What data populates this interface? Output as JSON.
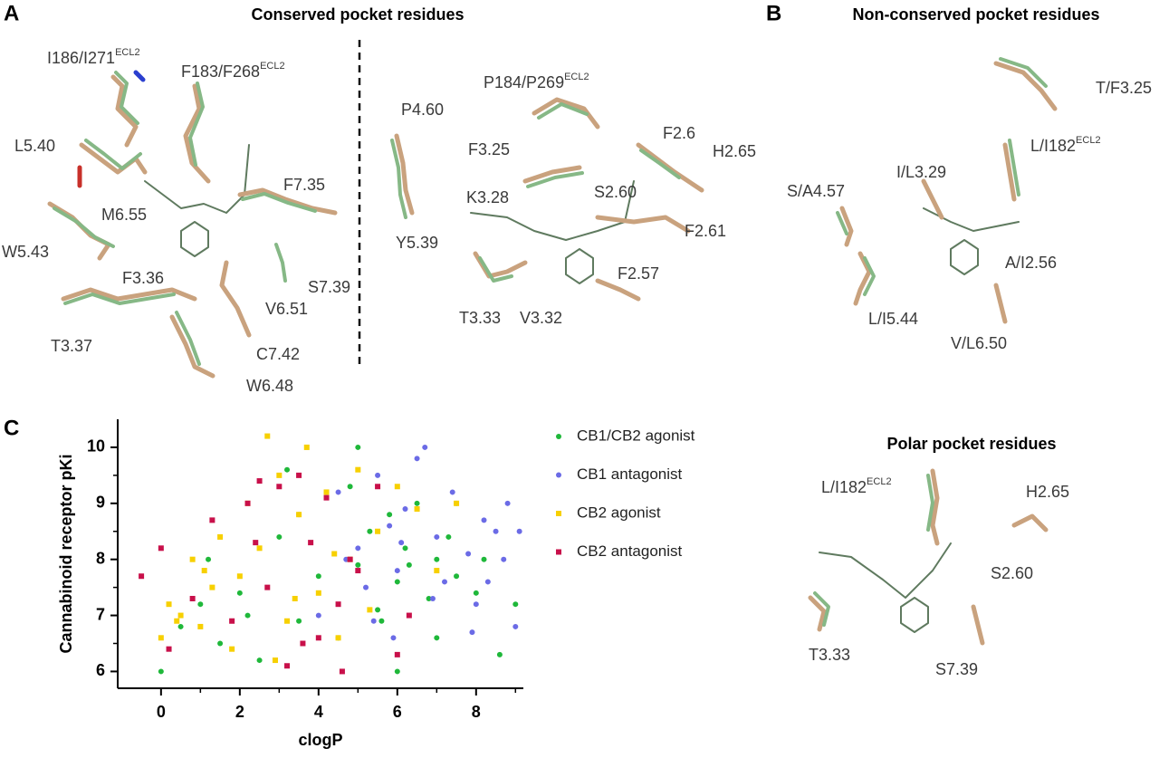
{
  "panels": [
    {
      "letter": "A",
      "title": "Conserved pocket residues"
    },
    {
      "letter": "B",
      "title": "Non-conserved pocket residues"
    },
    {
      "letter": "C"
    }
  ],
  "polar_title": "Polar pocket residues",
  "residues": {
    "a_left": [
      {
        "text": "I186/I271",
        "sup": "ECL2"
      },
      {
        "text": "F183/F268",
        "sup": "ECL2"
      },
      {
        "text": "L5.40"
      },
      {
        "text": "F7.35"
      },
      {
        "text": "M6.55"
      },
      {
        "text": "W5.43"
      },
      {
        "text": "F3.36"
      },
      {
        "text": "S7.39"
      },
      {
        "text": "V6.51"
      },
      {
        "text": "T3.37"
      },
      {
        "text": "C7.42"
      },
      {
        "text": "W6.48"
      }
    ],
    "a_right": [
      {
        "text": "P4.60"
      },
      {
        "text": "P184/P269",
        "sup": "ECL2"
      },
      {
        "text": "F3.25"
      },
      {
        "text": "F2.6"
      },
      {
        "text": "H2.65"
      },
      {
        "text": "K3.28"
      },
      {
        "text": "S2.60"
      },
      {
        "text": "F2.61"
      },
      {
        "text": "Y5.39"
      },
      {
        "text": "F2.57"
      },
      {
        "text": "T3.33"
      },
      {
        "text": "V3.32"
      }
    ],
    "b_top": [
      {
        "text": "T/F3.25"
      },
      {
        "text": "L/I182",
        "sup": "ECL2"
      },
      {
        "text": "I/L3.29"
      },
      {
        "text": "S/A4.57"
      },
      {
        "text": "A/I2.56"
      },
      {
        "text": "L/I5.44"
      },
      {
        "text": "V/L6.50"
      }
    ],
    "b_polar": [
      {
        "text": "L/I182",
        "sup": "ECL2"
      },
      {
        "text": "H2.65"
      },
      {
        "text": "S2.60"
      },
      {
        "text": "T3.33"
      },
      {
        "text": "S7.39"
      }
    ]
  },
  "chart_data": {
    "type": "scatter",
    "x_label": "clogP",
    "y_label": "Cannabinoid receptor pKi",
    "xlim": [
      -1.1,
      9.2
    ],
    "ylim": [
      5.7,
      10.5
    ],
    "xticks": [
      0,
      2,
      4,
      6,
      8
    ],
    "xminorticks": [
      1,
      3,
      5,
      7,
      9
    ],
    "yticks": [
      6,
      7,
      8,
      9,
      10
    ],
    "yminorticks": [
      6.5,
      7.5,
      8.5,
      9.5
    ],
    "series": [
      {
        "name": "CB1/CB2 agonist",
        "color": "#1fb83a",
        "marker": "circle",
        "x": [
          0,
          0.5,
          1,
          1.5,
          2,
          2.5,
          3,
          3.5,
          4,
          4.2,
          4.5,
          5,
          5,
          5.3,
          5.5,
          5.8,
          6,
          6,
          6.2,
          6.5,
          6.8,
          7,
          7,
          7.3,
          7.5,
          8,
          8.2,
          8.6,
          9,
          3.2,
          2.2,
          4.8,
          6.3,
          5.6,
          1.2
        ],
        "values": [
          6,
          6.8,
          7.2,
          6.5,
          7.4,
          6.2,
          8.4,
          6.9,
          7.7,
          9.2,
          6.6,
          10,
          7.9,
          8.5,
          7.1,
          8.8,
          6.0,
          7.6,
          8.2,
          9.0,
          7.3,
          8.0,
          6.6,
          8.4,
          7.7,
          7.4,
          8.0,
          6.3,
          7.2,
          9.6,
          7.0,
          9.3,
          7.9,
          6.9,
          8.0
        ]
      },
      {
        "name": "CB1 antagonist",
        "color": "#6b6be6",
        "marker": "circle",
        "x": [
          3.5,
          4,
          4.5,
          5,
          5.2,
          5.5,
          5.8,
          6,
          6.2,
          6.5,
          6.7,
          7,
          7.2,
          7.5,
          7.8,
          8,
          8.2,
          8.5,
          8.7,
          9,
          9.1,
          6.9,
          5.4,
          4.7,
          7.4,
          8.3,
          6.1,
          5.9,
          7.9,
          8.8
        ],
        "values": [
          8.8,
          7.0,
          9.2,
          8.2,
          7.5,
          9.5,
          8.6,
          7.8,
          8.9,
          9.8,
          10,
          8.4,
          7.6,
          9.0,
          8.1,
          7.2,
          8.7,
          8.5,
          8.0,
          6.8,
          8.5,
          7.3,
          6.9,
          8.0,
          9.2,
          7.6,
          8.3,
          6.6,
          6.7,
          9.0
        ]
      },
      {
        "name": "CB2 agonist",
        "color": "#f7d000",
        "marker": "square",
        "x": [
          0,
          0.2,
          0.5,
          0.8,
          1,
          1.3,
          1.5,
          1.8,
          2,
          2.2,
          2.5,
          2.7,
          3,
          3.2,
          3.5,
          3.7,
          4,
          4.2,
          4.5,
          4.8,
          5,
          5.3,
          5.5,
          6,
          6.5,
          7,
          7.5,
          2.9,
          3.4,
          1.1,
          4.4,
          0.4
        ],
        "values": [
          6.6,
          7.2,
          7.0,
          8.0,
          6.8,
          7.5,
          8.4,
          6.4,
          7.7,
          9.0,
          8.2,
          10.2,
          9.5,
          6.9,
          8.8,
          10.0,
          7.4,
          9.2,
          6.6,
          8.0,
          9.6,
          7.1,
          8.5,
          9.3,
          8.9,
          7.8,
          9.0,
          6.2,
          7.3,
          7.8,
          8.1,
          6.9
        ]
      },
      {
        "name": "CB2 antagonist",
        "color": "#c8104a",
        "marker": "square",
        "x": [
          -0.5,
          0,
          0.2,
          0.8,
          1.3,
          1.8,
          2.2,
          2.5,
          2.7,
          3,
          3.2,
          3.5,
          3.8,
          4,
          4.2,
          4.5,
          4.8,
          5,
          5.5,
          6,
          6.3,
          3.6,
          2.4,
          4.6
        ],
        "values": [
          7.7,
          8.2,
          6.4,
          7.3,
          8.7,
          6.9,
          9.0,
          9.4,
          7.5,
          9.3,
          6.1,
          9.5,
          8.3,
          6.6,
          9.1,
          7.2,
          8.0,
          7.8,
          9.3,
          6.3,
          7.0,
          6.5,
          8.3,
          6.0
        ]
      }
    ]
  }
}
